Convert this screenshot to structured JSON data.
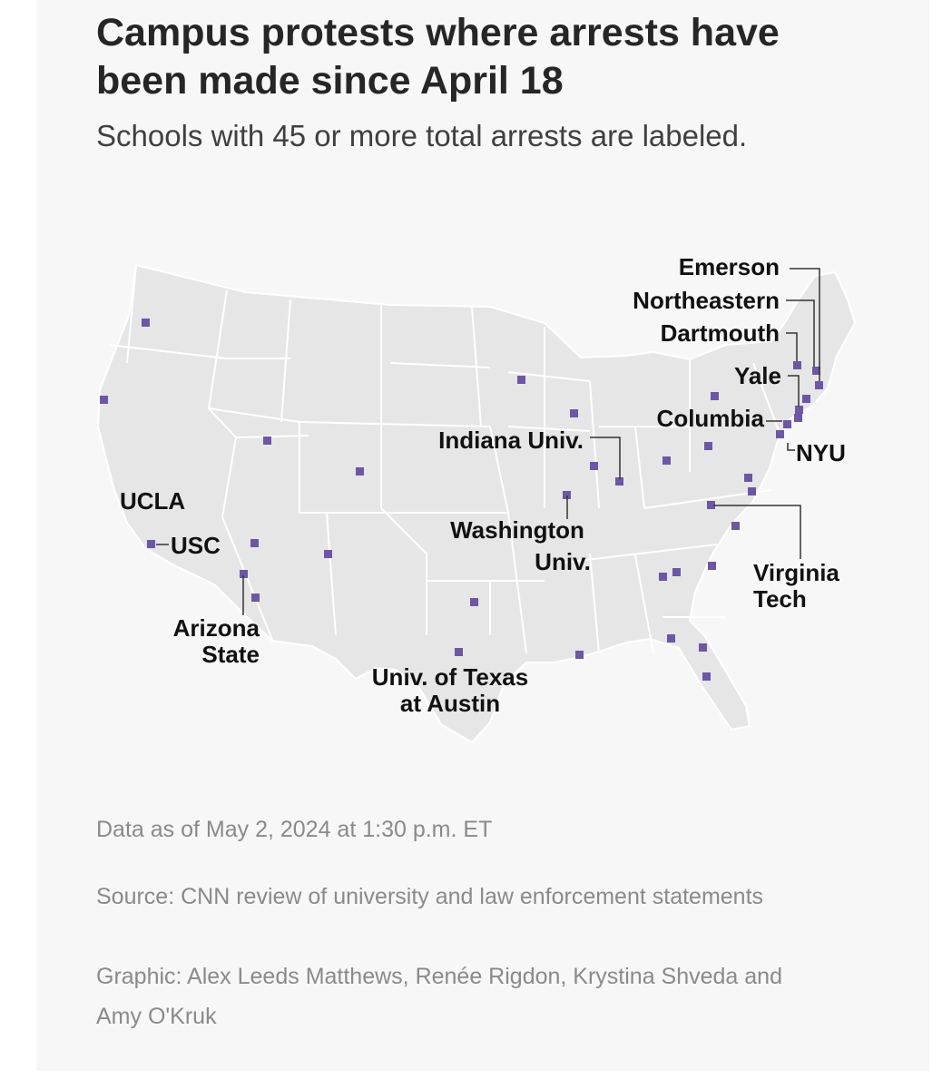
{
  "header": {
    "title": "Campus protests where arrests have been made since April 18",
    "subtitle": "Schools with 45 or more total arrests are labeled."
  },
  "map": {
    "region": "Contiguous United States",
    "land_color": "#e6e6e6",
    "border_color": "#ffffff",
    "marker_color": "#6e56a6",
    "marker_shape": "square",
    "labels": {
      "emerson": "Emerson",
      "northeastern": "Northeastern",
      "dartmouth": "Dartmouth",
      "yale": "Yale",
      "columbia": "Columbia",
      "nyu": "NYU",
      "indiana": "Indiana Univ.",
      "washington_1": "Washington",
      "washington_2": "Univ.",
      "virginia_1": "Virginia",
      "virginia_2": "Tech",
      "ucla": "UCLA",
      "usc": "USC",
      "arizona_1": "Arizona",
      "arizona_2": "State",
      "texas_1": "Univ. of Texas",
      "texas_2": "at Austin"
    }
  },
  "footer": {
    "data_as_of": "Data as of May 2, 2024 at 1:30 p.m. ET",
    "source": "Source: CNN review of university and law enforcement statements",
    "graphic": "Graphic: Alex Leeds Matthews, Renée Rigdon, Krystina Shveda and Amy O'Kruk"
  }
}
